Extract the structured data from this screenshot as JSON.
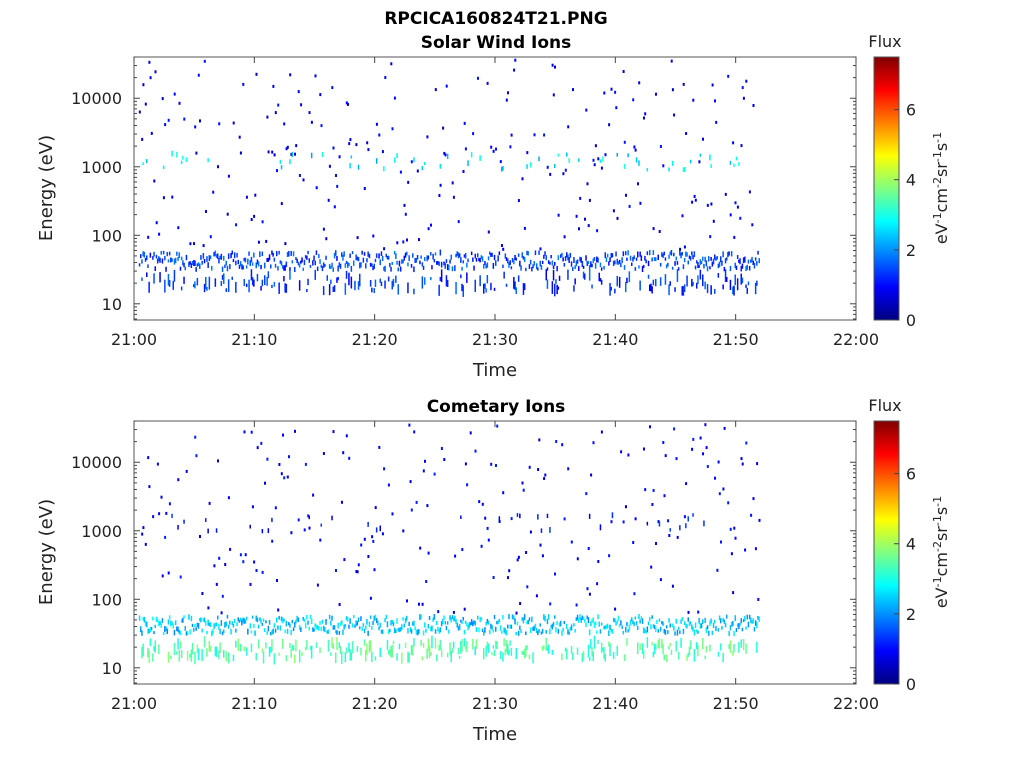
{
  "figure_title": "RPCICA160824T21.PNG",
  "chart_data": [
    {
      "type": "heatmap",
      "title": "Solar Wind Ions",
      "xlabel": "Time",
      "ylabel": "Energy (eV)",
      "x_tick_labels": [
        "21:00",
        "21:10",
        "21:20",
        "21:30",
        "21:40",
        "21:50",
        "22:00"
      ],
      "x_range_minutes": [
        0,
        60
      ],
      "y_scale": "log",
      "y_range": [
        5.8,
        40000
      ],
      "y_tick_values": [
        10,
        100,
        1000,
        10000
      ],
      "y_tick_labels": [
        "10",
        "100",
        "1000",
        "10000"
      ],
      "colorbar": {
        "title": "Flux",
        "range": [
          0,
          7.5
        ],
        "ticks": [
          0,
          2,
          4,
          6
        ],
        "tick_labels": [
          "0",
          "2",
          "4",
          "6"
        ],
        "colormap": "jet"
      },
      "data_end_minute": 52,
      "bands": [
        {
          "energy": 42,
          "level": 1.2,
          "density": 0.95,
          "description": "continuous low-energy band"
        },
        {
          "energy": 20,
          "level": 1.1,
          "density": 0.35,
          "description": "bursty 10-30 eV flux"
        },
        {
          "energy": 1200,
          "level": 2.4,
          "density": 0.12,
          "description": "periodic dashes near 1 keV"
        }
      ],
      "scatter_level": 0.5
    },
    {
      "type": "heatmap",
      "title": "Cometary Ions",
      "xlabel": "Time",
      "ylabel": "Energy (eV)",
      "x_tick_labels": [
        "21:00",
        "21:10",
        "21:20",
        "21:30",
        "21:40",
        "21:50",
        "22:00"
      ],
      "x_range_minutes": [
        0,
        60
      ],
      "y_scale": "log",
      "y_range": [
        5.8,
        40000
      ],
      "y_tick_values": [
        10,
        100,
        1000,
        10000
      ],
      "y_tick_labels": [
        "10",
        "100",
        "1000",
        "10000"
      ],
      "colorbar": {
        "title": "Flux",
        "range": [
          0,
          7.5
        ],
        "ticks": [
          0,
          2,
          4,
          6
        ],
        "tick_labels": [
          "0",
          "2",
          "4",
          "6"
        ],
        "colormap": "jet"
      },
      "data_end_minute": 52,
      "bands": [
        {
          "energy": 42,
          "level": 2.2,
          "density": 0.95,
          "description": "continuous low-energy band"
        },
        {
          "energy": 18,
          "level": 3.2,
          "density": 0.45,
          "description": "bursty 10-30 eV flux"
        },
        {
          "energy": 1300,
          "level": 0.8,
          "density": 0.08,
          "description": "sparse dashes near 1 keV"
        }
      ],
      "scatter_level": 0.6
    }
  ]
}
